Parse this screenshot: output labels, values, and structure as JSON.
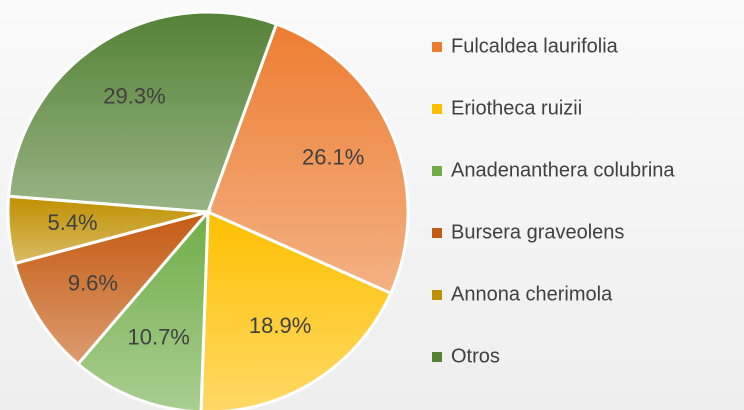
{
  "chart_data": {
    "type": "pie",
    "categories": [
      "Fulcaldea laurifolia",
      "Eriotheca ruizii",
      "Anadenanthera colubrina",
      "Bursera graveolens",
      "Annona cherimola",
      "Otros"
    ],
    "values": [
      26.1,
      18.9,
      10.7,
      9.6,
      5.4,
      29.3
    ],
    "value_labels": [
      "26.1%",
      "18.9%",
      "10.7%",
      "9.6%",
      "5.4%",
      "29.3%"
    ],
    "colors": [
      "#ed7d31",
      "#ffc000",
      "#70ad47",
      "#c55a11",
      "#bf9000",
      "#548235"
    ],
    "legend": "right"
  }
}
